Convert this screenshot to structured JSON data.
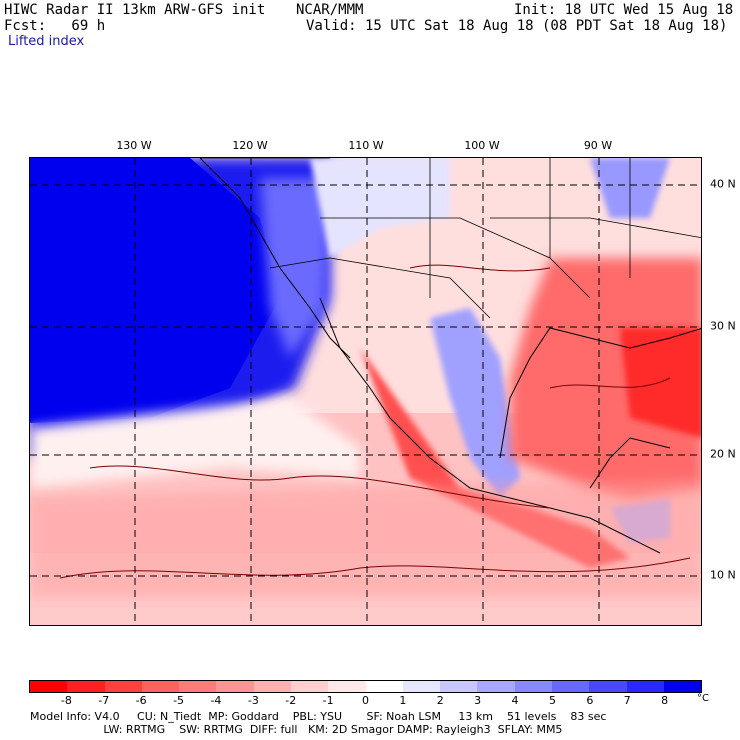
{
  "header": {
    "title": "HIWC Radar II 13km ARW-GFS init",
    "org": "NCAR/MMM",
    "init": "Init: 18 UTC Wed 15 Aug 18",
    "fcst": "Fcst:   69 h",
    "valid": "Valid: 15 UTC Sat 18 Aug 18 (08 PDT Sat 18 Aug 18)",
    "field": "Lifted index"
  },
  "lon_labels": [
    "130 W",
    "120 W",
    "110 W",
    "100 W",
    "90 W"
  ],
  "lat_labels": [
    "40 N",
    "30 N",
    "20 N",
    "10 N"
  ],
  "colorbar": {
    "unit": "°C",
    "ticks": [
      "-8",
      "-7",
      "-6",
      "-5",
      "-4",
      "-3",
      "-2",
      "-1",
      "0",
      "1",
      "2",
      "3",
      "4",
      "5",
      "6",
      "7",
      "8"
    ],
    "colors": [
      "#ff0000",
      "#ff2020",
      "#ff4040",
      "#ff6060",
      "#ff7a7a",
      "#ff9494",
      "#ffb0b0",
      "#ffcece",
      "#ffe8e8",
      "#ffffff",
      "#e6e6ff",
      "#c8c8ff",
      "#a8a8ff",
      "#8888ff",
      "#6868ff",
      "#4848ff",
      "#2828ff",
      "#0000ee"
    ]
  },
  "footer": {
    "line1": "Model Info: V4.0     CU: N_Tiedt  MP: Goddard    PBL: YSU       SF: Noah LSM     13 km    51 levels    83 sec",
    "line2": "                     LW: RRTMG    SW: RRTMG  DIFF: full   KM: 2D Smagor DAMP: Rayleigh3  SFLAY: MM5"
  }
}
